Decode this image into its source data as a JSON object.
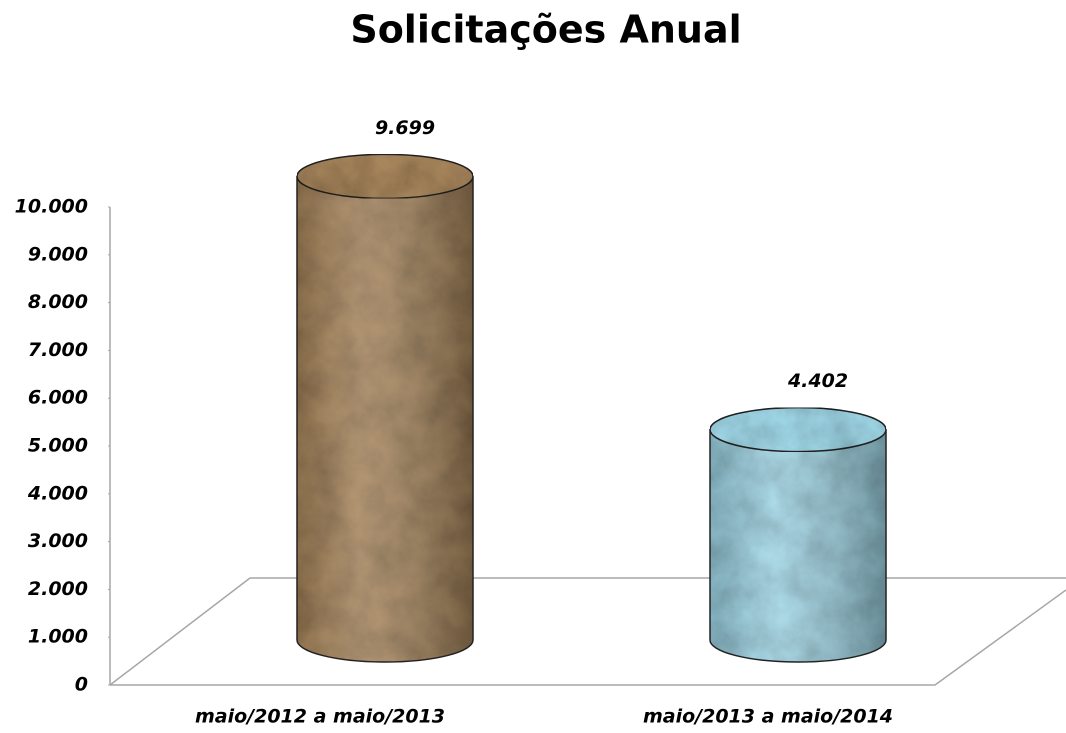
{
  "chart_data": {
    "type": "cylinder",
    "title": "Solicitações Anual",
    "categories": [
      "maio/2012 a maio/2013",
      "maio/2013 a maio/2014"
    ],
    "values": [
      9699,
      4402
    ],
    "value_labels": [
      "9.699",
      "4.402"
    ],
    "colors": [
      "#a8865c",
      "#9fd6e6"
    ],
    "ylim": [
      0,
      10000
    ],
    "yticks": [
      0,
      {
        "value": 1000,
        "label": "1.000"
      },
      {
        "value": 2000,
        "label": "2.000"
      },
      {
        "value": 3000,
        "label": "3.000"
      },
      {
        "value": 4000,
        "label": "4.000"
      },
      {
        "value": 5000,
        "label": "5.000"
      },
      {
        "value": 6000,
        "label": "6.000"
      },
      {
        "value": 7000,
        "label": "7.000"
      },
      {
        "value": 8000,
        "label": "8.000"
      },
      {
        "value": 9000,
        "label": "9.000"
      },
      {
        "value": 10000,
        "label": "10.000"
      }
    ]
  }
}
